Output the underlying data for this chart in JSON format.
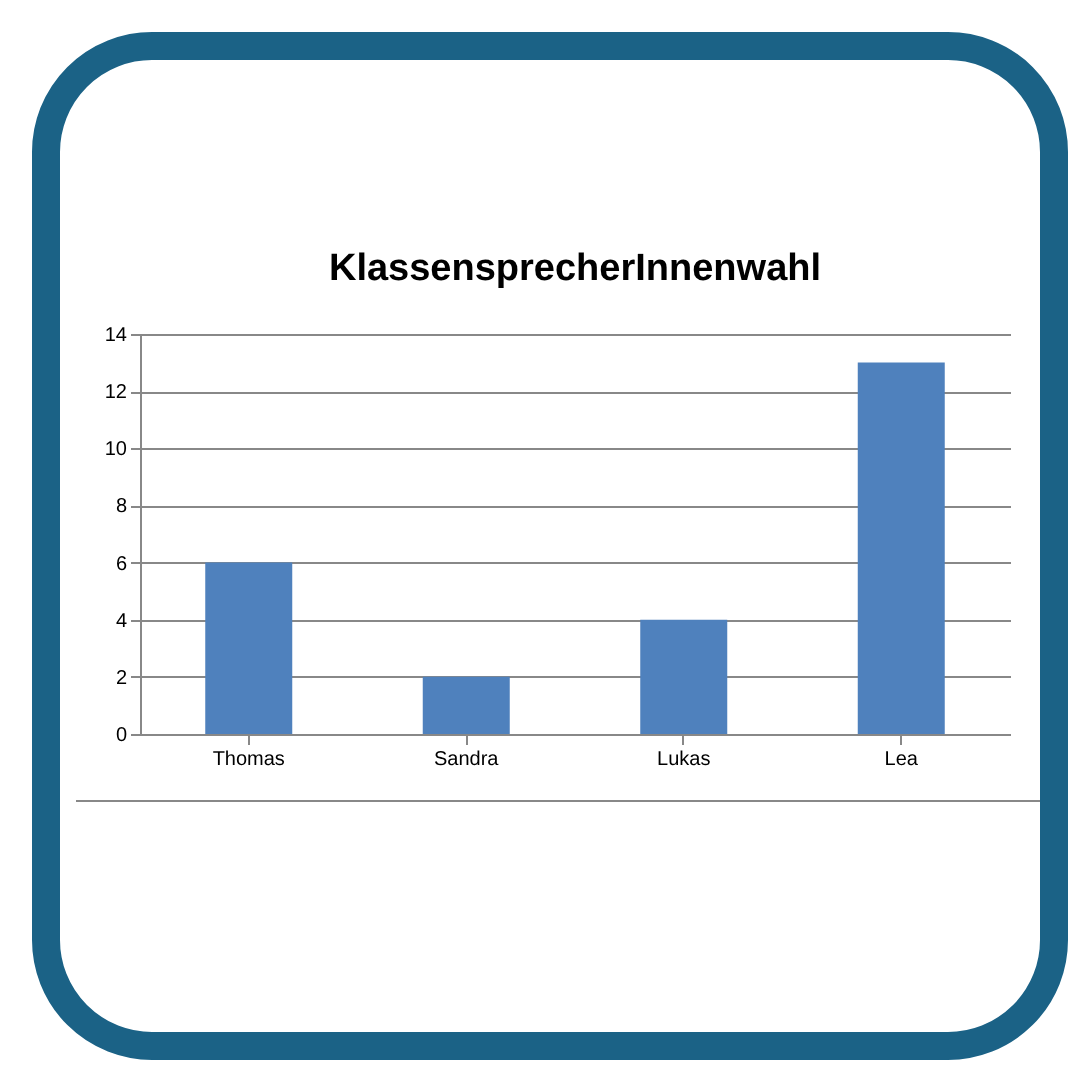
{
  "chart_data": {
    "type": "bar",
    "title": "KlassensprecherInnenwahl",
    "categories": [
      "Thomas",
      "Sandra",
      "Lukas",
      "Lea"
    ],
    "values": [
      6,
      2,
      4,
      13
    ],
    "color": "#4f81bd",
    "ylim": [
      0,
      14
    ],
    "yticks": [
      0,
      2,
      4,
      6,
      8,
      10,
      12,
      14
    ],
    "grid": "y"
  }
}
